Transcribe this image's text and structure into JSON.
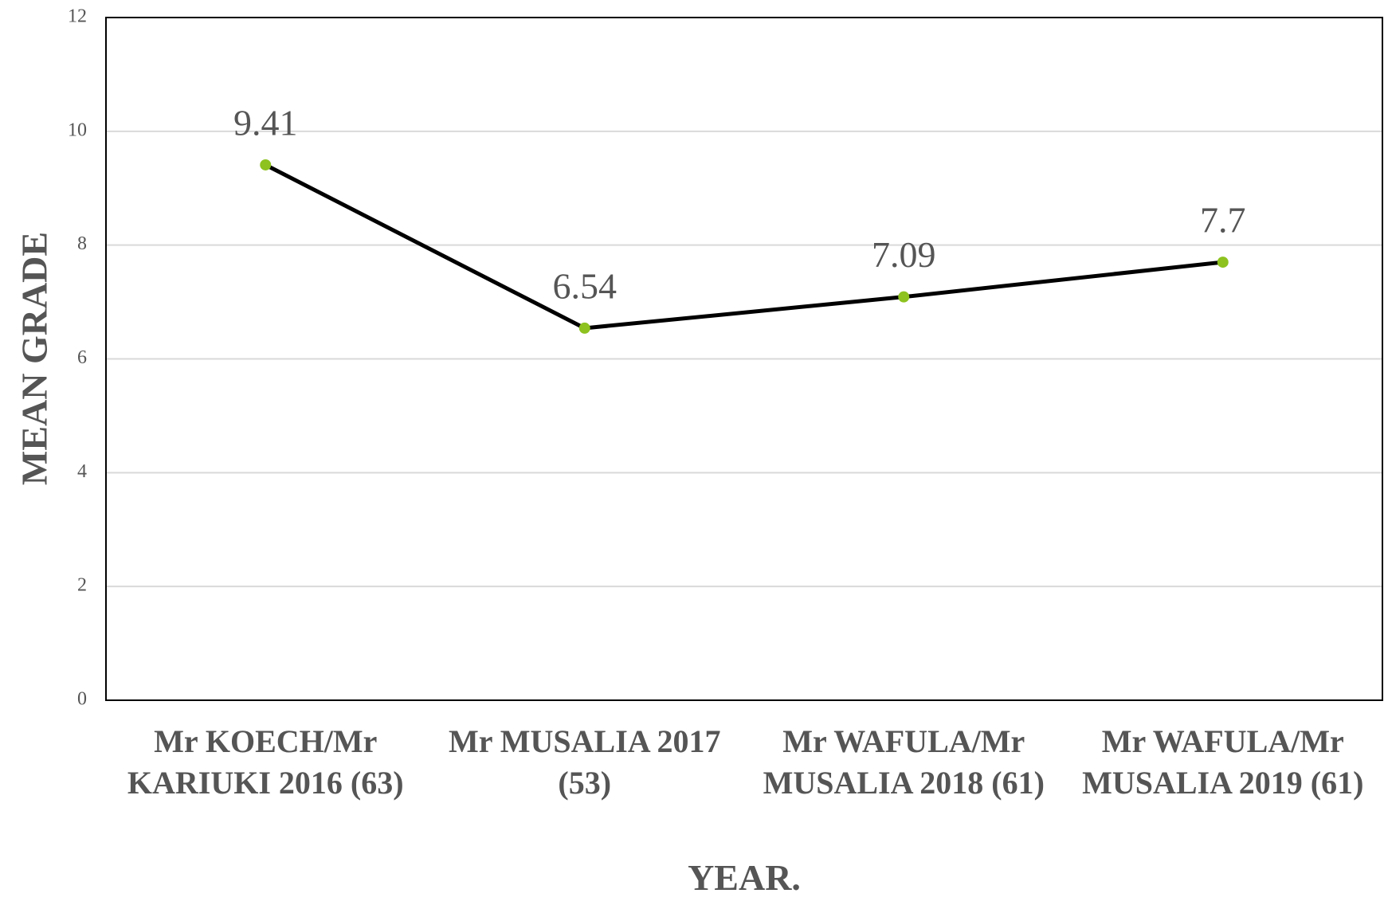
{
  "chart_data": {
    "type": "line",
    "x_label": "YEAR.",
    "y_label": "MEAN GRADE",
    "categories": [
      "Mr KOECH/Mr KARIUKI 2016 (63)",
      "Mr MUSALIA 2017 (53)",
      "Mr WAFULA/Mr MUSALIA 2018 (61)",
      "Mr WAFULA/Mr MUSALIA 2019 (61)"
    ],
    "series": [
      {
        "name": "Mean grade",
        "color": "#000000",
        "marker_color": "#8dc21f",
        "values": [
          9.41,
          6.54,
          7.09,
          7.7
        ]
      }
    ],
    "ylim": [
      0,
      12
    ],
    "yticks": [
      0,
      2,
      4,
      6,
      8,
      10,
      12
    ],
    "grid": true
  }
}
